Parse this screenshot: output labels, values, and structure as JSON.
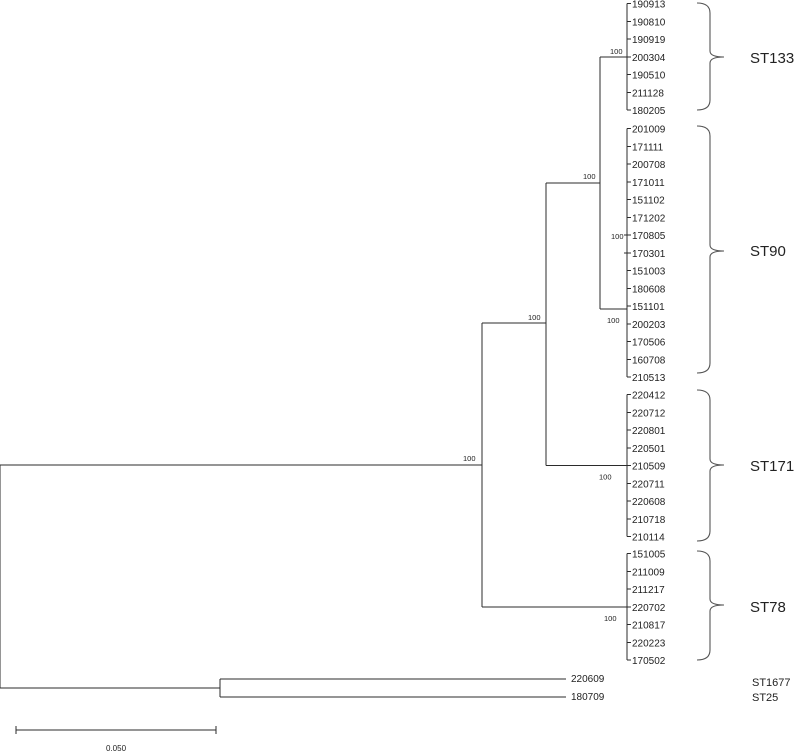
{
  "tree": {
    "clades": [
      {
        "label": "ST133",
        "bootstrap": "100",
        "leaves": [
          "190913",
          "190810",
          "190919",
          "200304",
          "190510",
          "211128",
          "180205"
        ]
      },
      {
        "label": "ST90",
        "bootstrap": "100",
        "inner_bootstrap": "100",
        "leaves": [
          "201009",
          "171111",
          "200708",
          "171011",
          "151102",
          "171202",
          "170805",
          "170301",
          "151003",
          "180608",
          "151101",
          "200203",
          "170506",
          "160708",
          "210513"
        ]
      },
      {
        "label": "ST171",
        "bootstrap": "100",
        "leaves": [
          "220412",
          "220712",
          "220801",
          "220501",
          "210509",
          "220711",
          "220608",
          "210718",
          "210114"
        ]
      },
      {
        "label": "ST78",
        "bootstrap": "100",
        "leaves": [
          "151005",
          "211009",
          "211217",
          "220702",
          "210817",
          "220223",
          "170502"
        ]
      }
    ],
    "internal_bootstraps": {
      "st133_st90": "100",
      "st133_st90_st171": "100",
      "ingroup": "100"
    },
    "outgroups": [
      {
        "leaf": "220609",
        "label": "ST1677"
      },
      {
        "leaf": "180709",
        "label": "ST25"
      }
    ]
  },
  "scale_bar": {
    "label": "0.050"
  }
}
